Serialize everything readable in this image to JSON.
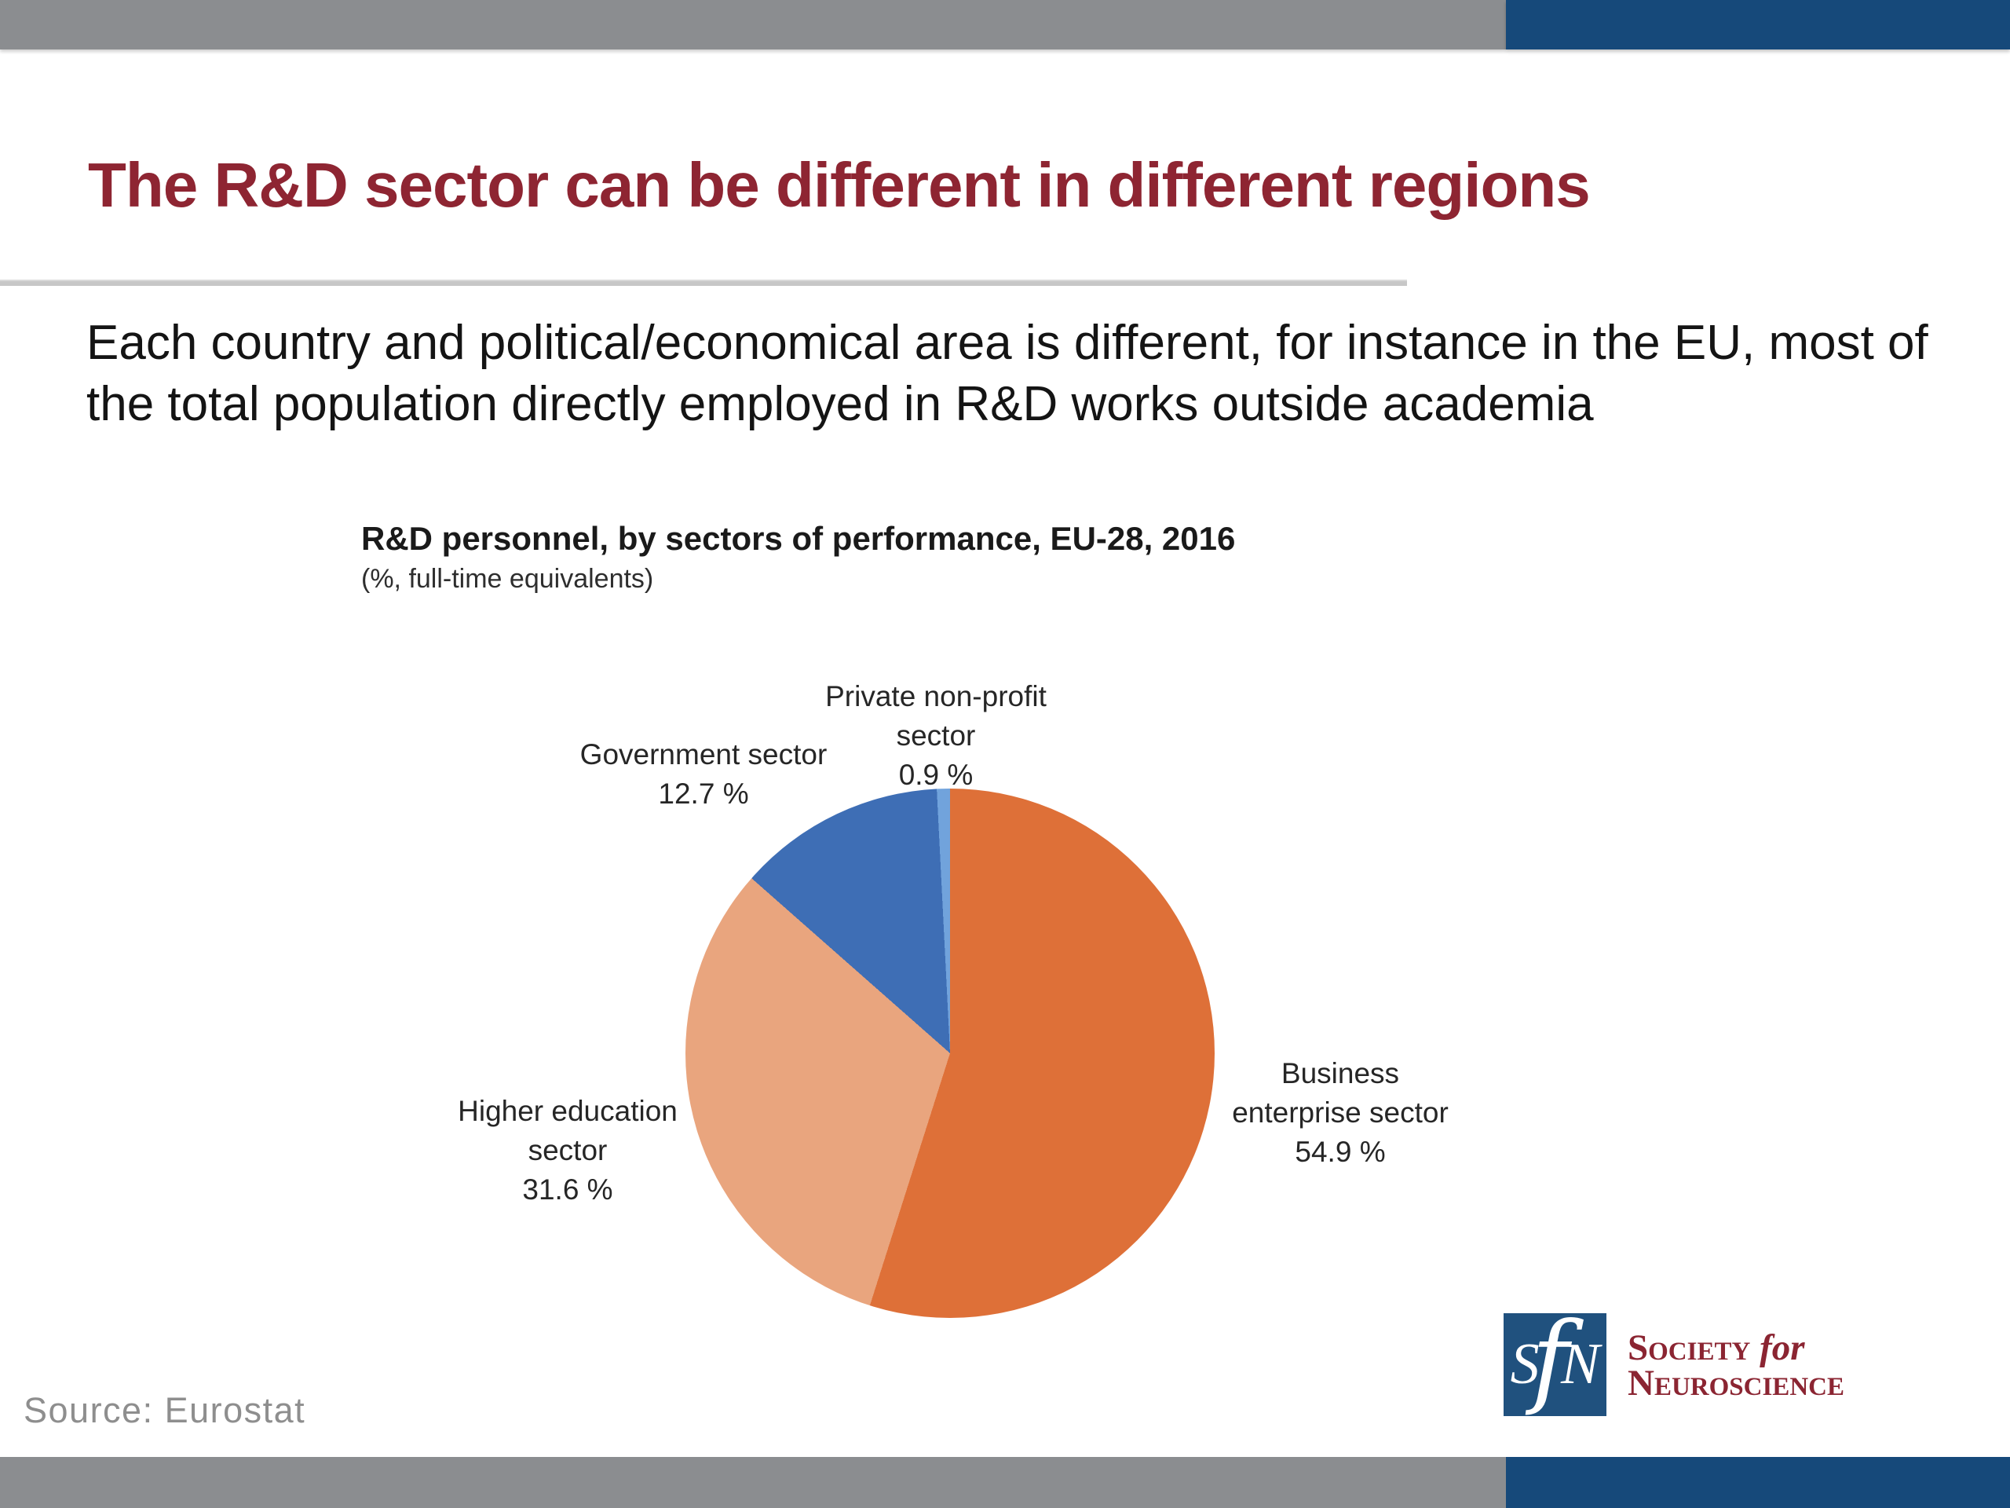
{
  "bars": {
    "gray_color": "#8B8D90",
    "blue_color": "#16497A"
  },
  "slide": {
    "title": "The R&D sector can be different in different regions",
    "title_color": "#8E2532",
    "body_text": "Each country and political/economical area is different, for instance in the EU, most of the total population directly employed in R&D works outside academia",
    "source": "Source: Eurostat"
  },
  "chart_data": {
    "type": "pie",
    "title": "R&D personnel, by sectors of performance, EU-28, 2016",
    "subtitle": "(%, full-time equivalents)",
    "start_angle_deg": 0,
    "direction": "clockwise",
    "unit": "%",
    "slices": [
      {
        "label": "Business enterprise sector",
        "value": 54.9,
        "color": "#DE7038",
        "label_lines": [
          "Business",
          "enterprise sector",
          "54.9 %"
        ]
      },
      {
        "label": "Higher education sector",
        "value": 31.6,
        "color": "#E9A57E",
        "label_lines": [
          "Higher education",
          "sector",
          "31.6 %"
        ]
      },
      {
        "label": "Government sector",
        "value": 12.7,
        "color": "#3E6EB5",
        "label_lines": [
          "Government sector",
          "12.7 %"
        ]
      },
      {
        "label": "Private non-profit sector",
        "value": 0.9,
        "color": "#71A3DC",
        "label_lines": [
          "Private non-profit",
          "sector",
          "0.9 %"
        ]
      }
    ]
  },
  "logo": {
    "monogram_s": "S",
    "monogram_f": "f",
    "monogram_n": "N",
    "word1": "Society",
    "word2": "for",
    "word3": "Neuroscience",
    "square_color": "#20517E",
    "text_color": "#8B2532"
  }
}
